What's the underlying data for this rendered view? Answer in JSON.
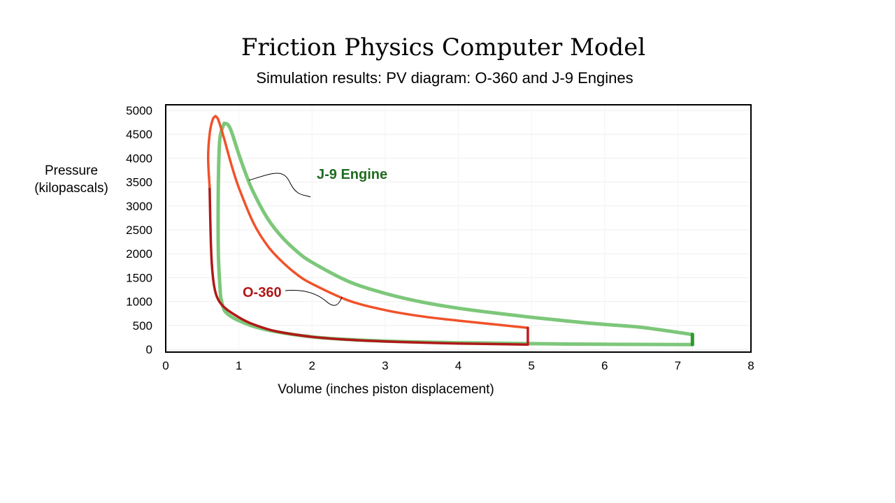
{
  "page": {
    "title": "Friction Physics Computer Model",
    "subtitle": "Simulation results: PV diagram: O-360 and J-9 Engines"
  },
  "chart_data": {
    "type": "line",
    "title": "Friction Physics Computer Model",
    "subtitle": "Simulation results: PV diagram: O-360 and J-9 Engines",
    "xlabel": "Volume (inches piston displacement)",
    "ylabel": "Pressure\n(kilopascals)",
    "xlim": [
      0,
      8
    ],
    "ylim": [
      0,
      5000
    ],
    "xticks": [
      "0",
      "1",
      "2",
      "3",
      "4",
      "5",
      "6",
      "7",
      "8"
    ],
    "yticks": [
      "0",
      "500",
      "1000",
      "1500",
      "2000",
      "2500",
      "3000",
      "3500",
      "4000",
      "4500",
      "5000"
    ],
    "grid": true,
    "series": [
      {
        "name": "J-9 Engine",
        "color": "#7dc77a",
        "segments": [
          {
            "part": "compression",
            "color": "#7dc77a",
            "x": [
              7.2,
              6.5,
              6.0,
              5.5,
              5.0,
              4.5,
              4.0,
              3.5,
              3.0,
              2.5,
              2.0,
              1.5,
              1.2,
              1.0,
              0.9,
              0.8,
              0.75
            ],
            "y": [
              100,
              102,
              105,
              110,
              118,
              128,
              138,
              152,
              172,
              205,
              260,
              370,
              480,
              600,
              680,
              820,
              1100
            ]
          },
          {
            "part": "combustion",
            "color": "#7dc77a",
            "x": [
              0.75,
              0.72,
              0.72,
              0.74,
              0.8
            ],
            "y": [
              1100,
              2000,
              3500,
              4400,
              4730
            ]
          },
          {
            "part": "expansion",
            "color": "#7dc77a",
            "x": [
              0.8,
              0.85,
              0.9,
              1.0,
              1.1,
              1.2,
              1.4,
              1.6,
              1.8,
              2.0,
              2.5,
              3.0,
              3.5,
              4.0,
              4.5,
              5.0,
              5.5,
              6.0,
              6.5,
              7.2
            ],
            "y": [
              4730,
              4700,
              4550,
              4080,
              3650,
              3280,
              2720,
              2330,
              2040,
              1820,
              1420,
              1170,
              990,
              860,
              760,
              670,
              590,
              520,
              460,
              310
            ]
          },
          {
            "part": "exhaust",
            "color": "#2e9a2e",
            "x": [
              7.2,
              7.2
            ],
            "y": [
              310,
              100
            ]
          }
        ]
      },
      {
        "name": "O-360",
        "color": "#c11b1b",
        "segments": [
          {
            "part": "compression",
            "color": "#b01818",
            "x": [
              4.95,
              4.5,
              4.0,
              3.5,
              3.0,
              2.5,
              2.0,
              1.5,
              1.2,
              1.0,
              0.8,
              0.7,
              0.65,
              0.62,
              0.6
            ],
            "y": [
              100,
              110,
              122,
              140,
              165,
              200,
              260,
              380,
              520,
              670,
              880,
              1100,
              1450,
              2100,
              3400
            ]
          },
          {
            "part": "combustion",
            "color": "#f0522a",
            "x": [
              0.6,
              0.58,
              0.6,
              0.64,
              0.68
            ],
            "y": [
              3400,
              4000,
              4500,
              4800,
              4880
            ]
          },
          {
            "part": "expansion",
            "color": "#f0522a",
            "x": [
              0.68,
              0.72,
              0.8,
              0.9,
              1.0,
              1.2,
              1.4,
              1.6,
              1.8,
              2.0,
              2.5,
              3.0,
              3.5,
              4.0,
              4.5,
              4.95
            ],
            "y": [
              4880,
              4800,
              4400,
              3850,
              3380,
              2640,
              2150,
              1820,
              1560,
              1370,
              1020,
              820,
              690,
              600,
              520,
              450
            ]
          },
          {
            "part": "exhaust",
            "color": "#c11b1b",
            "x": [
              4.95,
              4.95
            ],
            "y": [
              450,
              100
            ]
          }
        ]
      }
    ],
    "annotations": [
      {
        "text": "J-9 Engine",
        "color": "#1f6b1f",
        "series": "J-9 Engine"
      },
      {
        "text": "O-360",
        "color": "#b01818",
        "series": "O-360"
      }
    ]
  }
}
